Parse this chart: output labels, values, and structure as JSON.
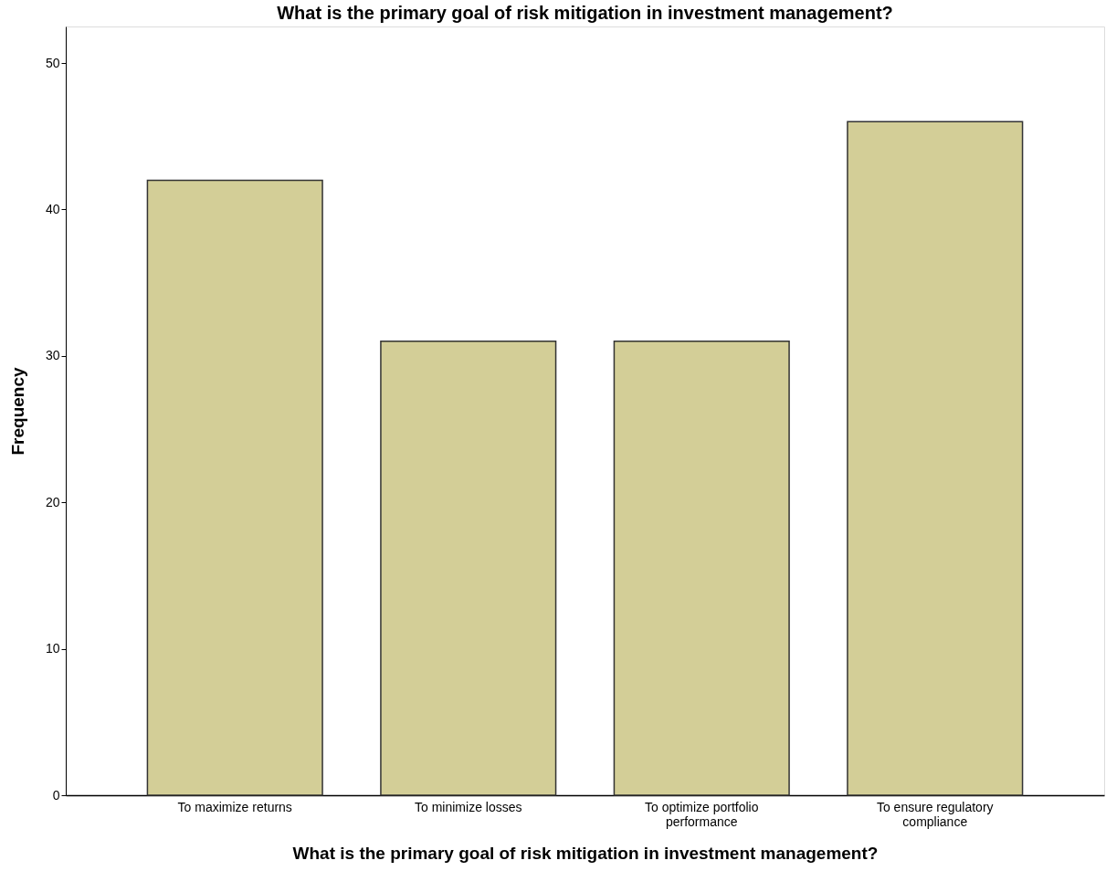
{
  "chart_data": {
    "type": "bar",
    "title": "What is the primary goal of risk mitigation in investment management?",
    "xlabel": "What is the primary goal of risk mitigation in investment management?",
    "ylabel": "Frequency",
    "categories": [
      "To maximize returns",
      "To minimize losses",
      "To optimize portfolio performance",
      "To ensure regulatory compliance"
    ],
    "values": [
      42,
      31,
      31,
      46
    ],
    "color": "#d3ce97",
    "ylim": [
      0,
      52.5
    ],
    "yticks": [
      0,
      10,
      20,
      30,
      40,
      50
    ],
    "grid": false
  }
}
